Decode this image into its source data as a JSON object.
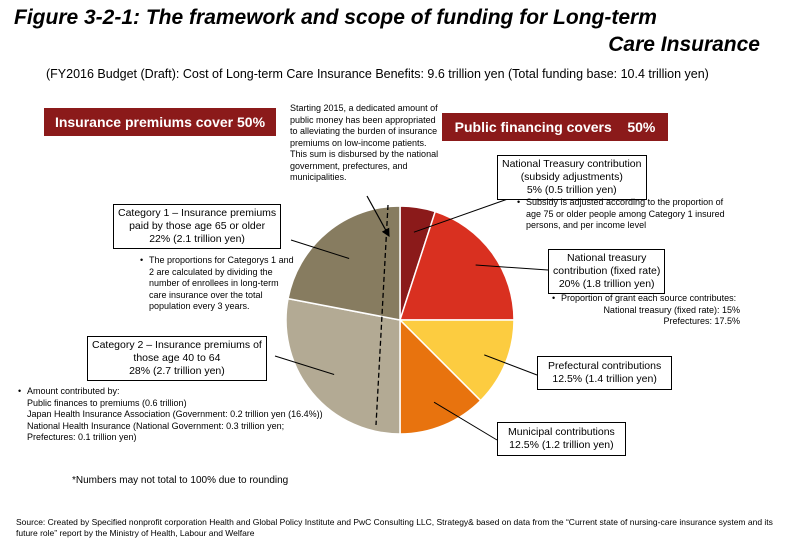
{
  "title_line1": "Figure 3-2-1: The framework and scope of funding for Long-term",
  "title_line2": "Care Insurance",
  "subtitle": "(FY2016 Budget (Draft): Cost of Long-term Care Insurance Benefits: 9.6 trillion yen (Total funding base: 10.4 trillion yen)",
  "banner_left": "Insurance premiums cover 50%",
  "banner_right": "Public financing covers    50%",
  "note_starting": "Starting 2015, a dedicated amount of public money has been appropriated to alleviating the burden of insurance premiums on low-income patients. This sum is disbursed by the national government, prefectures, and municipalities.",
  "note_subsidy": "Subsidy is adjusted according to the proportion of age 75 or older people among Category 1 insured persons, and per income level",
  "note_proportions": "The proportions for Categorys 1 and 2 are calculated by dividing the number of enrollees in long-term care insurance over the total population every 3 years.",
  "note_grant": {
    "head": "Proportion of grant each source contributes:",
    "line1": "National treasury (fixed rate): 15%",
    "line2": "Prefectures: 17.5%"
  },
  "note_amount": {
    "head": "Amount contributed by:",
    "line1": "Public finances to premiums (0.6 trillion)",
    "line2": "Japan Health Insurance Association (Government: 0.2 trillion yen (16.4%))",
    "line3": "National Health Insurance (National Government: 0.3 trillion yen;",
    "line4": "Prefectures: 0.1 trillion yen)"
  },
  "bullet": "•",
  "rounding_note": "*Numbers may not total to 100% due to rounding",
  "source": "Source: Created by Specified nonprofit corporation Health and Global Policy Institute and PwC Consulting LLC, Strategy& based on data from the “Current state of nursing-care insurance system and its future role” report by the Ministry of Health, Labour and Welfare",
  "chart_data": {
    "type": "pie",
    "slices": [
      {
        "name": "National Treasury contribution",
        "line1": "National Treasury contribution",
        "line2": "(subsidy adjustments)",
        "line3": "5% (0.5 trillion yen)",
        "value": 5,
        "color": "#8b1a1a"
      },
      {
        "name": "National treasury contribution (fixed rate)",
        "line1": "National treasury",
        "line2": "contribution (fixed rate)",
        "line3": "20% (1.8 trillion yen)",
        "value": 20,
        "color": "#d93020"
      },
      {
        "name": "Prefectural contributions",
        "line1": "Prefectural contributions",
        "line2": "12.5% (1.4 trillion yen)",
        "line3": "",
        "value": 12.5,
        "color": "#fccc40"
      },
      {
        "name": "Municipal contributions",
        "line1": "Municipal contributions",
        "line2": "12.5% (1.2 trillion yen)",
        "line3": "",
        "value": 12.5,
        "color": "#e8730e"
      },
      {
        "name": "Category 2 – Insurance premiums of those age 40 to 64",
        "line1": "Category 2 – Insurance premiums of",
        "line2": "those age 40 to 64",
        "line3": "28% (2.7 trillion yen)",
        "value": 28,
        "color": "#b3aa94"
      },
      {
        "name": "Category 1 – Insurance premiums paid by those age 65 or older",
        "line1": "Category 1 – Insurance premiums",
        "line2": "paid by those age 65 or older",
        "line3": "22% (2.1 trillion yen)",
        "value": 22,
        "color": "#877c60"
      }
    ]
  }
}
